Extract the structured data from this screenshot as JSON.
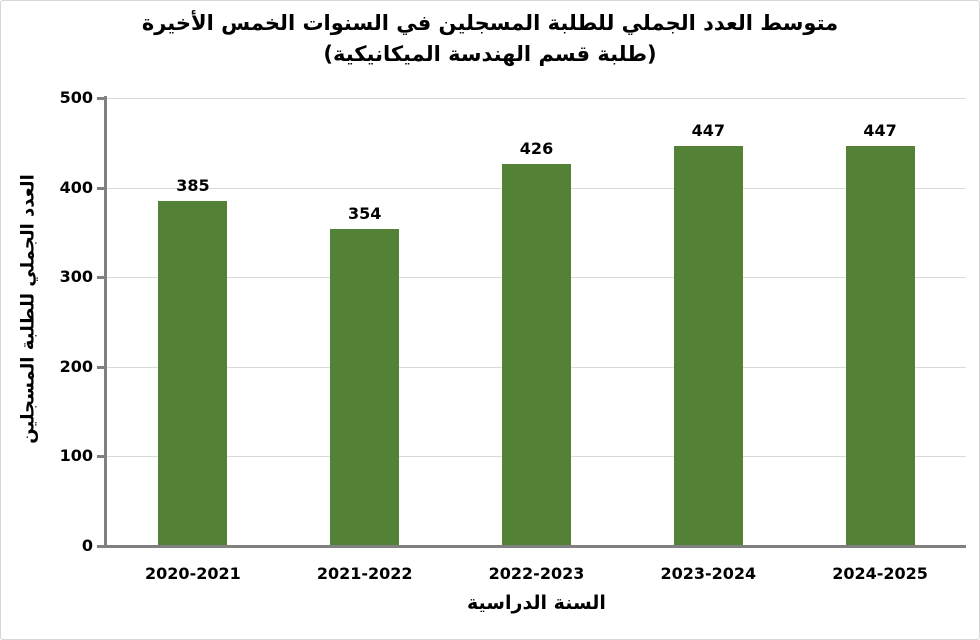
{
  "chart_data": {
    "type": "bar",
    "title": "متوسط العدد الجملي للطلبة المسجلين في السنوات الخمس الأخيرة (طلبة قسم الهندسة الميكانيكية)",
    "title_line1": "متوسط العدد الجملي للطلبة المسجلين في السنوات الخمس الأخيرة",
    "title_line2": "(طلبة قسم الهندسة الميكانيكية)",
    "categories": [
      "2020-2021",
      "2021-2022",
      "2022-2023",
      "2023-2024",
      "2024-2025"
    ],
    "values": [
      385,
      354,
      426,
      447,
      447
    ],
    "xlabel": "السنة الدراسية",
    "ylabel": "العدد الجملي للطلبة المسجلين",
    "ylim": [
      0,
      500
    ],
    "yticks": [
      0,
      100,
      200,
      300,
      400,
      500
    ],
    "grid": true,
    "legend_position": "none",
    "data_labels_shown": true,
    "colors": {
      "bar": "#538135",
      "axis": "#808080",
      "gridline": "#d9d9d9",
      "text": "#000000",
      "frame_border": "#d6d6d6"
    }
  }
}
